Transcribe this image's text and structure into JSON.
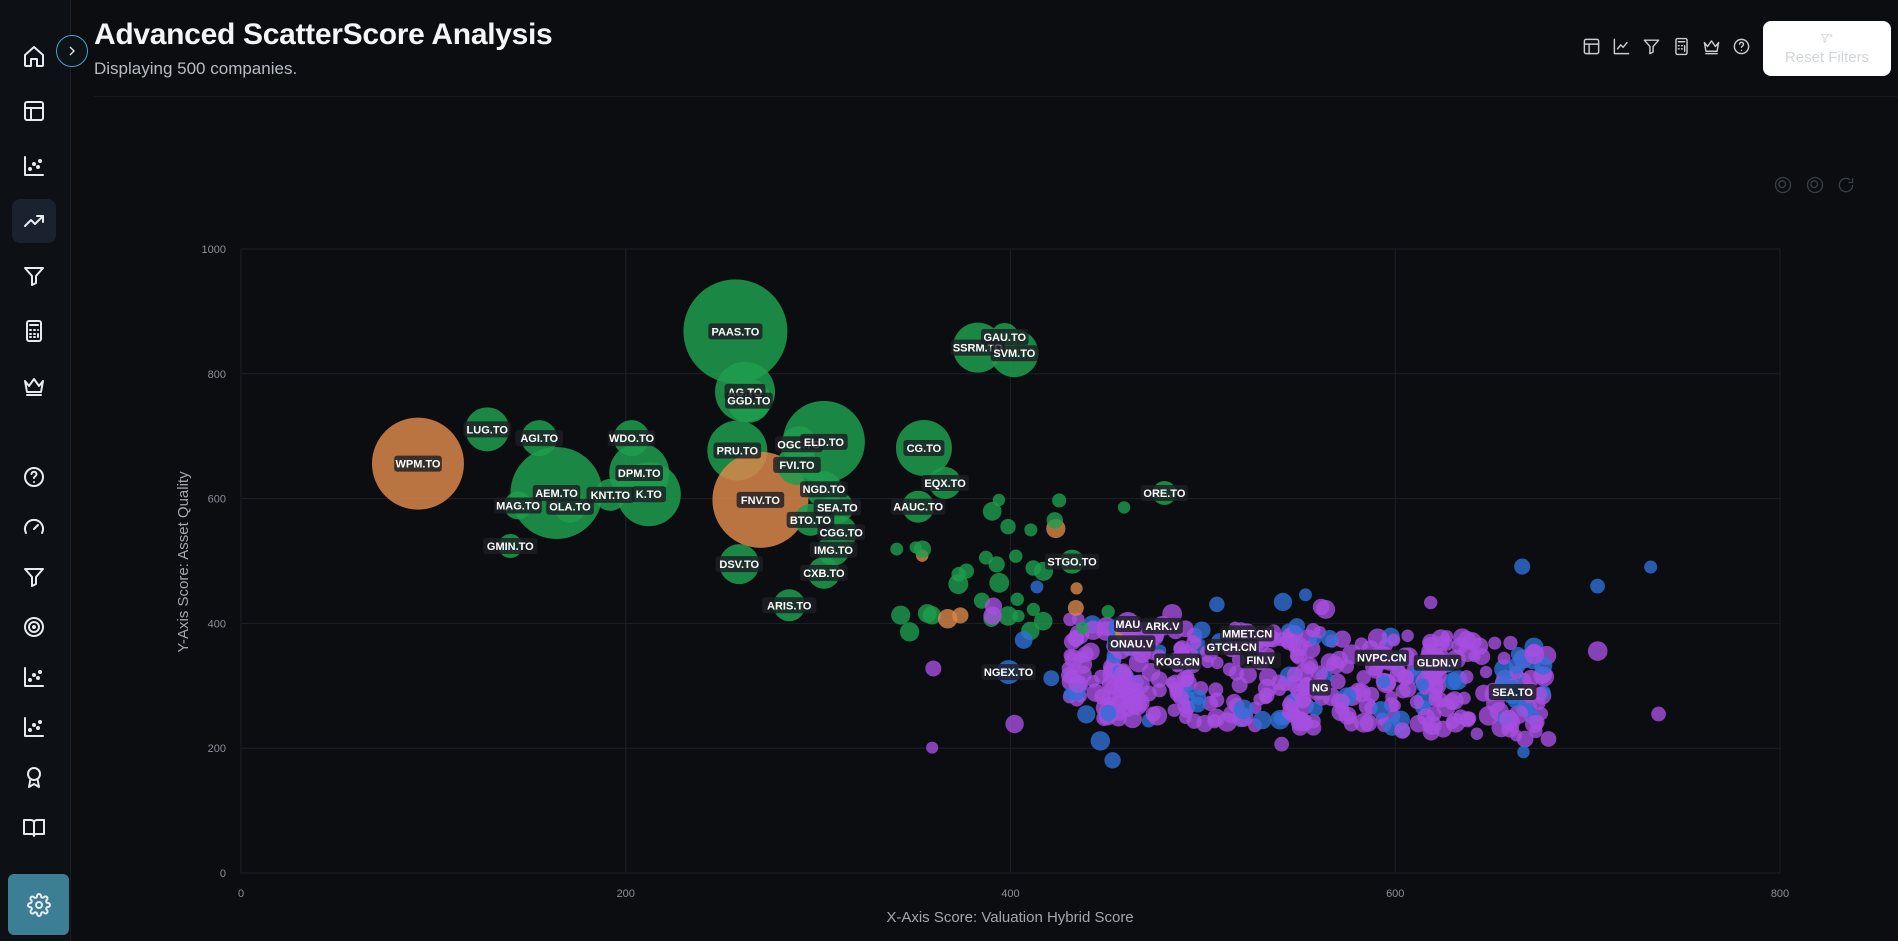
{
  "header": {
    "title": "Advanced ScatterScore Analysis",
    "subtitle": "Displaying 500 companies.",
    "reset_label": "Reset Filters"
  },
  "sidebar": {
    "top_items": [
      "home-icon",
      "table-icon",
      "scatter-icon",
      "trend-icon",
      "filter-icon",
      "calculator-icon",
      "crown-icon"
    ],
    "bottom_items": [
      "help-icon",
      "gauge-icon",
      "filter-icon",
      "target-icon",
      "scatter-icon",
      "scatter-icon",
      "award-icon",
      "book-icon"
    ],
    "active_index": 3,
    "settings_icon": "gear-icon"
  },
  "toolbar_icons": [
    "table-icon",
    "line-chart-icon",
    "filter-icon",
    "calculator-icon",
    "crown-icon",
    "help-icon"
  ],
  "colors": {
    "green": "#1e9e4e",
    "orange": "#d9874a",
    "blue": "#2f6fd6",
    "purple": "#a64fe0",
    "background": "#0b0d10",
    "accent": "#3c7f95"
  },
  "chart_data": {
    "type": "scatter",
    "title": "",
    "xlabel": "X-Axis Score: Valuation Hybrid Score",
    "ylabel": "Y-Axis Score: Asset Quality",
    "xlim": [
      0,
      800
    ],
    "ylim": [
      0,
      1000
    ],
    "x_ticks": [
      "0",
      "200",
      "400",
      "600",
      "800"
    ],
    "y_ticks": [
      "0",
      "200",
      "400",
      "600",
      "800",
      "1000"
    ],
    "grid": true,
    "size_encoding": "bubble",
    "labeled_points": [
      {
        "label": "WPM.TO",
        "x": 92,
        "y": 656,
        "r": 46,
        "color": "orange"
      },
      {
        "label": "LUG.TO",
        "x": 128,
        "y": 711,
        "r": 22,
        "color": "green"
      },
      {
        "label": "AGI.TO",
        "x": 155,
        "y": 697,
        "r": 18,
        "color": "green"
      },
      {
        "label": "AEM.TO",
        "x": 164,
        "y": 609,
        "r": 46,
        "color": "green"
      },
      {
        "label": "MAG.TO",
        "x": 144,
        "y": 589,
        "r": 14,
        "color": "green"
      },
      {
        "label": "OLA.TO",
        "x": 171,
        "y": 587,
        "r": 16,
        "color": "green"
      },
      {
        "label": "KNT.TO",
        "x": 192,
        "y": 606,
        "r": 16,
        "color": "green"
      },
      {
        "label": "WDO.TO",
        "x": 203,
        "y": 697,
        "r": 18,
        "color": "green"
      },
      {
        "label": "DPM.TO",
        "x": 207,
        "y": 641,
        "r": 30,
        "color": "green"
      },
      {
        "label": "K.TO",
        "x": 212,
        "y": 607,
        "r": 32,
        "color": "green"
      },
      {
        "label": "GMIN.TO",
        "x": 140,
        "y": 524,
        "r": 12,
        "color": "green"
      },
      {
        "label": "PAAS.TO",
        "x": 257,
        "y": 868,
        "r": 52,
        "color": "green"
      },
      {
        "label": "AG.TO",
        "x": 262,
        "y": 771,
        "r": 30,
        "color": "green"
      },
      {
        "label": "GGD.TO",
        "x": 264,
        "y": 757,
        "r": 22,
        "color": "green"
      },
      {
        "label": "PRU.TO",
        "x": 258,
        "y": 677,
        "r": 30,
        "color": "green"
      },
      {
        "label": "FNV.TO",
        "x": 270,
        "y": 598,
        "r": 48,
        "color": "orange"
      },
      {
        "label": "OGC.TO",
        "x": 290,
        "y": 687,
        "r": 18,
        "color": "green"
      },
      {
        "label": "ELD.TO",
        "x": 303,
        "y": 691,
        "r": 41,
        "color": "green"
      },
      {
        "label": "FVI.TO",
        "x": 289,
        "y": 654,
        "r": 20,
        "color": "green"
      },
      {
        "label": "NGD.TO",
        "x": 303,
        "y": 615,
        "r": 18,
        "color": "green"
      },
      {
        "label": "SEA.TO",
        "x": 310,
        "y": 586,
        "r": 16,
        "color": "green"
      },
      {
        "label": "BTO.TO",
        "x": 296,
        "y": 566,
        "r": 16,
        "color": "green"
      },
      {
        "label": "CGG.TO",
        "x": 312,
        "y": 546,
        "r": 16,
        "color": "green"
      },
      {
        "label": "IMG.TO",
        "x": 308,
        "y": 518,
        "r": 16,
        "color": "green"
      },
      {
        "label": "CXB.TO",
        "x": 303,
        "y": 481,
        "r": 16,
        "color": "green"
      },
      {
        "label": "DSV.TO",
        "x": 259,
        "y": 495,
        "r": 20,
        "color": "green"
      },
      {
        "label": "ARIS.TO",
        "x": 285,
        "y": 429,
        "r": 16,
        "color": "green"
      },
      {
        "label": "CG.TO",
        "x": 355,
        "y": 681,
        "r": 28,
        "color": "green"
      },
      {
        "label": "EQX.TO",
        "x": 366,
        "y": 625,
        "r": 16,
        "color": "green"
      },
      {
        "label": "AAUC.TO",
        "x": 352,
        "y": 587,
        "r": 16,
        "color": "green"
      },
      {
        "label": "SSRM.TO",
        "x": 383,
        "y": 842,
        "r": 25,
        "color": "green"
      },
      {
        "label": "GAU.TO",
        "x": 397,
        "y": 859,
        "r": 14,
        "color": "green"
      },
      {
        "label": "SVM.TO",
        "x": 402,
        "y": 833,
        "r": 24,
        "color": "green"
      },
      {
        "label": "ORE.TO",
        "x": 480,
        "y": 609,
        "r": 12,
        "color": "green"
      },
      {
        "label": "STGO.TO",
        "x": 432,
        "y": 499,
        "r": 12,
        "color": "green"
      },
      {
        "label": "NGEX.TO",
        "x": 399,
        "y": 322,
        "r": 12,
        "color": "blue"
      },
      {
        "label": "ONAU.V",
        "x": 463,
        "y": 368,
        "r": 12,
        "color": "purple"
      },
      {
        "label": "MAU",
        "x": 461,
        "y": 399,
        "r": 12,
        "color": "purple"
      },
      {
        "label": "ARK.V",
        "x": 479,
        "y": 396,
        "r": 10,
        "color": "purple"
      },
      {
        "label": "KOG.CN",
        "x": 487,
        "y": 339,
        "r": 10,
        "color": "purple"
      },
      {
        "label": "MMET.CN",
        "x": 523,
        "y": 384,
        "r": 10,
        "color": "purple"
      },
      {
        "label": "GTCH.CN",
        "x": 515,
        "y": 362,
        "r": 10,
        "color": "purple"
      },
      {
        "label": "FIN.V",
        "x": 530,
        "y": 341,
        "r": 10,
        "color": "purple"
      },
      {
        "label": "NG",
        "x": 561,
        "y": 297,
        "r": 10,
        "color": "purple"
      },
      {
        "label": "NVPC.CN",
        "x": 593,
        "y": 345,
        "r": 12,
        "color": "purple"
      },
      {
        "label": "GLDN.V",
        "x": 622,
        "y": 337,
        "r": 12,
        "color": "purple"
      },
      {
        "label": "SEA.TO",
        "x": 661,
        "y": 290,
        "r": 12,
        "color": "blue"
      }
    ]
  }
}
